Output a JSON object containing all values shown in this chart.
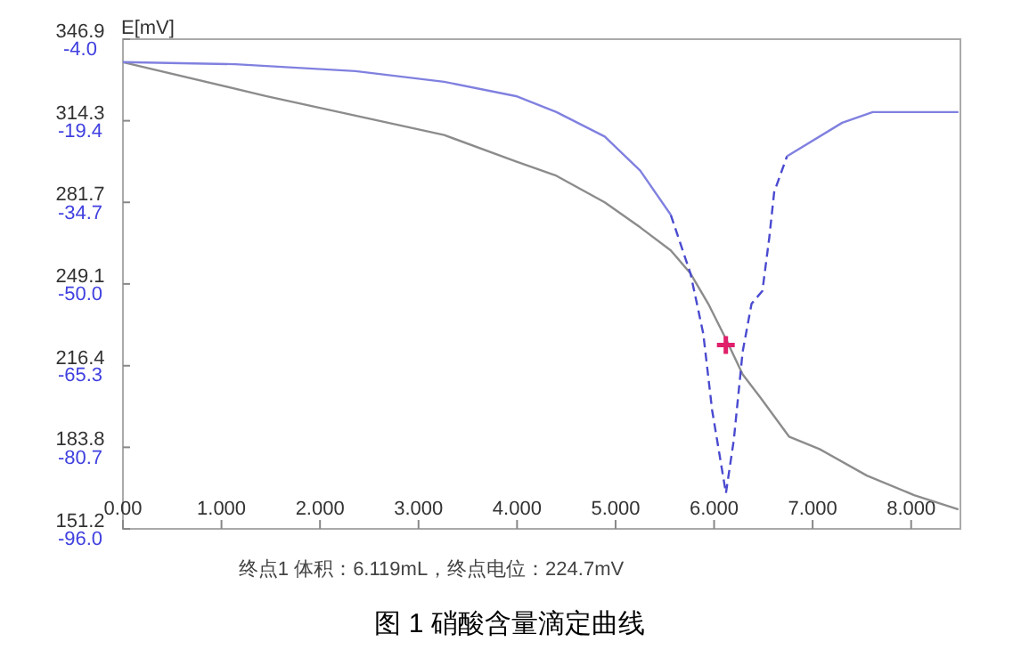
{
  "chart_data": {
    "type": "line",
    "xlim": [
      0,
      8.5
    ],
    "xticks": [
      {
        "value": 0,
        "label": "0.00"
      },
      {
        "value": 1,
        "label": "1.000"
      },
      {
        "value": 2,
        "label": "2.000"
      },
      {
        "value": 3,
        "label": "3.000"
      },
      {
        "value": 4,
        "label": "4.000"
      },
      {
        "value": 5,
        "label": "5.000"
      },
      {
        "value": 6,
        "label": "6.000"
      },
      {
        "value": 7,
        "label": "7.000"
      },
      {
        "value": 8,
        "label": "8.000"
      }
    ],
    "ylim": [
      151.2,
      346.9
    ],
    "yticks": [
      151.2,
      183.8,
      216.4,
      249.1,
      281.7,
      314.3,
      346.9
    ],
    "y2lim": [
      -96.0,
      -4.0
    ],
    "y2ticks": [
      {
        "value": -96,
        "label": "-96.0"
      },
      {
        "value": -80.7,
        "label": "-80.7"
      },
      {
        "value": -65.3,
        "label": "-65.3"
      },
      {
        "value": -50,
        "label": "-50.0"
      },
      {
        "value": -34.7,
        "label": "-34.7"
      },
      {
        "value": -19.4,
        "label": "-19.4"
      },
      {
        "value": -4,
        "label": "-4.0"
      }
    ],
    "series": [
      {
        "color": "#8c8c8c",
        "line_style": "solid",
        "x": [
          0,
          1.45,
          3.26,
          3.99,
          4.4,
          4.89,
          5.25,
          5.56,
          5.76,
          5.94,
          6.12,
          6.29,
          6.47,
          6.76,
          7.07,
          7.55,
          8.03,
          8.48
        ],
        "values": [
          337.7,
          324.2,
          308.6,
          298.0,
          292.3,
          281.7,
          271.7,
          262.5,
          253.3,
          241.2,
          227.1,
          212.9,
          203.7,
          188.1,
          183.1,
          172.5,
          164.7,
          159.0
        ]
      },
      {
        "color": "#8080e0",
        "axis": "y2",
        "line_style": "solid",
        "x": [
          0,
          1.14,
          2.36,
          3.26,
          3.99,
          4.4,
          4.89,
          5.25,
          5.56
        ],
        "values": [
          -8.3,
          -8.7,
          -10.0,
          -12.0,
          -14.7,
          -17.7,
          -22.3,
          -28.7,
          -37.0
        ]
      },
      {
        "color": "#4a4ad0",
        "axis": "y2",
        "line_style": "dashed",
        "x": [
          5.56,
          5.76,
          5.89,
          5.98,
          6.12,
          6.2,
          6.29,
          6.38,
          6.49,
          6.56,
          6.61,
          6.74
        ],
        "values": [
          -37.0,
          -48.0,
          -59.3,
          -73.7,
          -89.3,
          -79.3,
          -62.7,
          -53.7,
          -51.3,
          -41.3,
          -32.7,
          -26.0
        ]
      },
      {
        "color": "#8080e0",
        "axis": "y2",
        "line_style": "solid",
        "x": [
          6.74,
          7.3,
          7.61,
          8.48
        ],
        "values": [
          -26.0,
          -19.7,
          -17.7,
          -17.7
        ]
      },
      {
        "type": "scatter",
        "color": "#e0206a",
        "marker": "cross",
        "x": [
          6.119
        ],
        "values": [
          224.7
        ]
      }
    ],
    "annotations": [
      "E[mV]",
      "终点1 体积：6.119mL，终点电位：224.7mV",
      "图 1 硝酸含量滴定曲线"
    ]
  }
}
